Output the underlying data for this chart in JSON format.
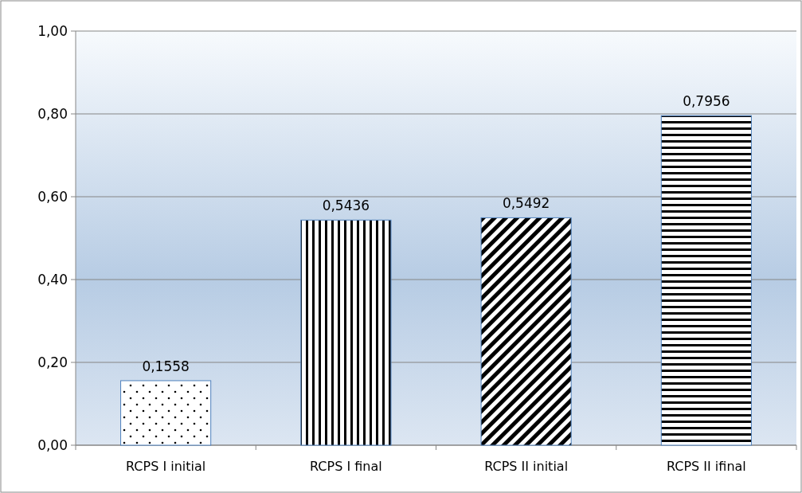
{
  "chart_data": {
    "type": "bar",
    "categories": [
      "RCPS I initial",
      "RCPS I final",
      "RCPS II initial",
      "RCPS II ifinal"
    ],
    "values": [
      0.1558,
      0.5436,
      0.5492,
      0.7956
    ],
    "value_labels": [
      "0,1558",
      "0,5436",
      "0,5492",
      "0,7956"
    ],
    "colors": [
      "#4f81bd",
      "#4f81bd",
      "#4f81bd",
      "#4f81bd"
    ],
    "ylim": [
      0,
      1
    ],
    "yticks": [
      {
        "value": 0,
        "label": "0,00"
      },
      {
        "value": 0.2,
        "label": "0,20"
      },
      {
        "value": 0.4,
        "label": "0,40"
      },
      {
        "value": 0.6,
        "label": "0,60"
      },
      {
        "value": 0.8,
        "label": "0,80"
      },
      {
        "value": 1,
        "label": "1,00"
      }
    ],
    "grid": "y"
  }
}
